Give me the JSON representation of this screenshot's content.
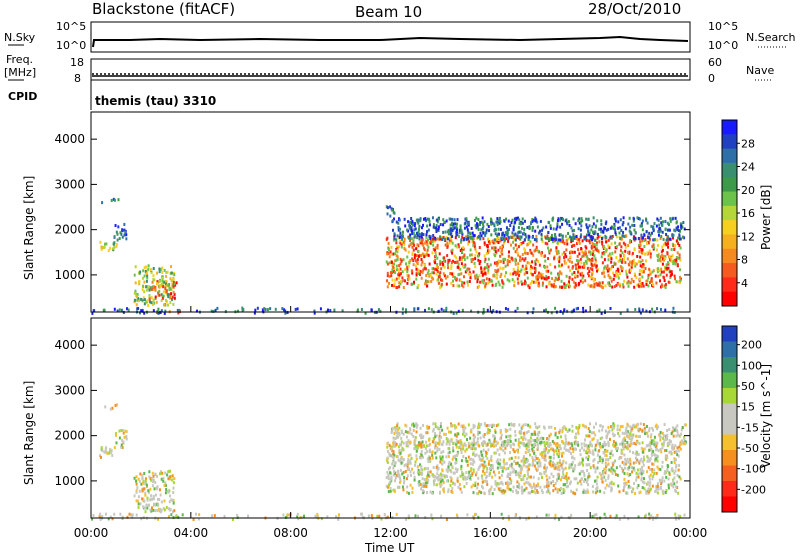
{
  "header": {
    "station": "Blackstone (fitACF)",
    "beam": "Beam 10",
    "date": "28/Oct/2010"
  },
  "top_panels": {
    "nsky_label": "N.Sky",
    "nsky_ticks": [
      "10^5",
      "10^0"
    ],
    "nsearch_label": "N.Search",
    "nsearch_ticks": [
      "10^5",
      "10^0"
    ],
    "freq_label_1": "Freq.",
    "freq_label_2": "[MHz]",
    "freq_ticks": [
      "18",
      "8"
    ],
    "nave_label": "Nave",
    "nave_ticks": [
      "60",
      "0"
    ],
    "cpid_label": "CPID",
    "cpid_text": "themis (tau) 3310"
  },
  "chart_data": [
    {
      "type": "heatmap",
      "name": "power-panel",
      "ylabel": "Slant Range [km]",
      "yticks": [
        1000,
        2000,
        3000,
        4000
      ],
      "ylim": [
        180,
        4600
      ],
      "xlim": [
        0,
        24
      ],
      "colorbar": {
        "label": "Power [dB]",
        "ticks": [
          "4",
          "8",
          "12",
          "16",
          "20",
          "24",
          "28"
        ],
        "colors": [
          "#1a1aff",
          "#2040c0",
          "#2f6fa8",
          "#3a8f70",
          "#3c9a4a",
          "#6cc24a",
          "#b5d638",
          "#f5d020",
          "#f5b020",
          "#f58a20",
          "#f55a20",
          "#ff2a1a",
          "#ff0000"
        ]
      },
      "regions": [
        {
          "t0": 0.2,
          "t1": 1.0,
          "r0": 1550,
          "r1": 1780,
          "level": "mid"
        },
        {
          "t0": 0.9,
          "t1": 1.4,
          "r0": 1750,
          "r1": 2150,
          "level": "low"
        },
        {
          "t0": 0.4,
          "t1": 1.2,
          "r0": 2600,
          "r1": 2720,
          "level": "low"
        },
        {
          "t0": 1.7,
          "t1": 3.3,
          "r0": 350,
          "r1": 1250,
          "level": "mid"
        },
        {
          "t0": 2.3,
          "t1": 3.4,
          "r0": 500,
          "r1": 900,
          "level": "high"
        },
        {
          "t0": 2.4,
          "t1": 3.6,
          "r0": 180,
          "r1": 260,
          "level": "high"
        },
        {
          "t0": 0.0,
          "t1": 24.0,
          "r0": 180,
          "r1": 300,
          "level": "low"
        },
        {
          "t0": 11.8,
          "t1": 23.6,
          "r0": 750,
          "r1": 1900,
          "level": "high"
        },
        {
          "t0": 12.0,
          "t1": 23.8,
          "r0": 1800,
          "r1": 2300,
          "level": "low"
        },
        {
          "t0": 11.8,
          "t1": 12.2,
          "r0": 2300,
          "r1": 2550,
          "level": "low"
        }
      ]
    },
    {
      "type": "heatmap",
      "name": "velocity-panel",
      "ylabel": "Slant Range [km]",
      "yticks": [
        1000,
        2000,
        3000,
        4000
      ],
      "ylim": [
        180,
        4600
      ],
      "xlim": [
        0,
        24
      ],
      "xticks": [
        "00:00",
        "04:00",
        "08:00",
        "12:00",
        "16:00",
        "20:00",
        "00:00"
      ],
      "xlabel": "Time UT",
      "colorbar": {
        "label": "Velocity [m s^-1]",
        "ticks": [
          "200",
          "100",
          "50",
          "15",
          "-15",
          "-50",
          "-100",
          "-200"
        ],
        "colors": [
          "#2040c0",
          "#2f6fa8",
          "#3a8f70",
          "#5cb84a",
          "#a8d838",
          "#c8c8c0",
          "#c8c8c0",
          "#f5c030",
          "#f59020",
          "#f56020",
          "#ff2a1a",
          "#ff0000"
        ]
      },
      "regions": [
        {
          "t0": 0.2,
          "t1": 1.0,
          "r0": 1550,
          "r1": 1780,
          "level": "ground"
        },
        {
          "t0": 0.9,
          "t1": 1.4,
          "r0": 1750,
          "r1": 2150,
          "level": "ground"
        },
        {
          "t0": 0.4,
          "t1": 1.2,
          "r0": 2600,
          "r1": 2720,
          "level": "ground"
        },
        {
          "t0": 1.7,
          "t1": 3.3,
          "r0": 350,
          "r1": 1250,
          "level": "ground"
        },
        {
          "t0": 0.0,
          "t1": 24.0,
          "r0": 180,
          "r1": 300,
          "level": "ground"
        },
        {
          "t0": 11.8,
          "t1": 23.6,
          "r0": 750,
          "r1": 1900,
          "level": "ground"
        },
        {
          "t0": 12.0,
          "t1": 23.8,
          "r0": 1800,
          "r1": 2300,
          "level": "ground"
        }
      ]
    }
  ]
}
